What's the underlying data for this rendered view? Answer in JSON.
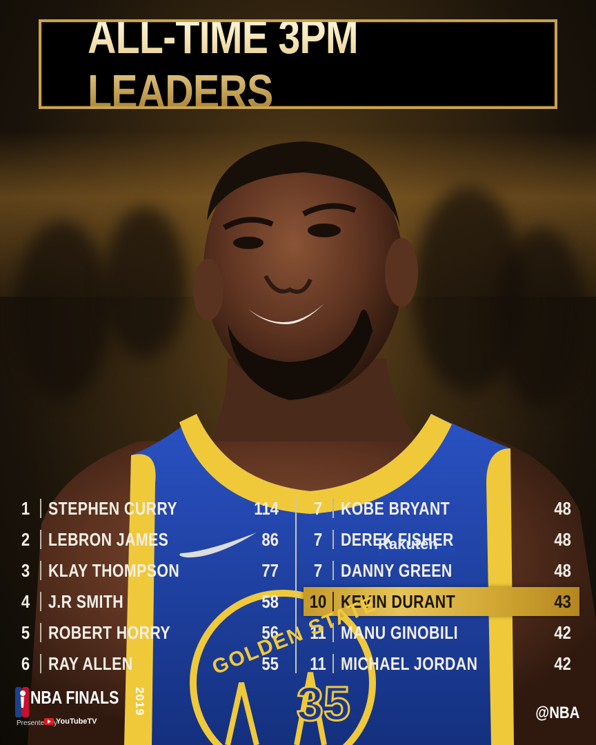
{
  "title": "ALL-TIME 3PM LEADERS",
  "left_leaders": [
    {
      "rank": "1",
      "name": "STEPHEN CURRY",
      "value": "114"
    },
    {
      "rank": "2",
      "name": "LEBRON JAMES",
      "value": "86"
    },
    {
      "rank": "3",
      "name": "KLAY THOMPSON",
      "value": "77"
    },
    {
      "rank": "4",
      "name": "J.R SMITH",
      "value": "58"
    },
    {
      "rank": "5",
      "name": "ROBERT HORRY",
      "value": "56"
    },
    {
      "rank": "6",
      "name": "RAY ALLEN",
      "value": "55"
    }
  ],
  "right_leaders": [
    {
      "rank": "7",
      "name": "KOBE BRYANT",
      "value": "48"
    },
    {
      "rank": "7",
      "name": "DEREK FISHER",
      "value": "48"
    },
    {
      "rank": "7",
      "name": "DANNY GREEN",
      "value": "48"
    },
    {
      "rank": "10",
      "name": "KEVIN DURANT",
      "value": "43"
    },
    {
      "rank": "11",
      "name": "MANU GINOBILI",
      "value": "42"
    },
    {
      "rank": "11",
      "name": "MICHAEL JORDAN",
      "value": "42"
    }
  ],
  "jersey": {
    "text": "GOLDEN STATE",
    "number": "35",
    "sponsor": "Rakuten"
  },
  "footer": {
    "brand": "NBA FINALS",
    "year": "2019",
    "presented_by": "Presented by",
    "sponsor": "YouTubeTV",
    "handle": "@NBA"
  },
  "colors": {
    "gold": "#c9a34e",
    "highlight": "#d8b03c",
    "jersey_blue": "#1e3f9c",
    "jersey_yellow": "#f0c93a"
  }
}
